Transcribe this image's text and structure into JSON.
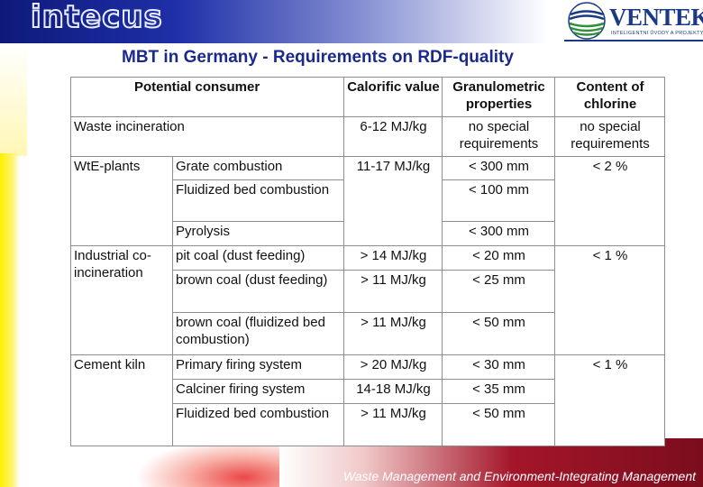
{
  "header": {
    "logo_left": "intecus",
    "logo_right": "VENTEKO",
    "logo_right_tagline": "INTELIGENTNI ÚVODY A PROJEKTY",
    "title": "MBT in Germany - Requirements on RDF-quality"
  },
  "table": {
    "headers": {
      "consumer": "Potential consumer",
      "calorific": "Calorific value",
      "granulometric": "Granulometric properties",
      "chlorine": "Content of chlorine"
    },
    "waste_incineration": {
      "consumer": "Waste incineration",
      "calorific": "6-12 MJ/kg",
      "granulometric": "no special requirements",
      "chlorine": "no special requirements"
    },
    "wte": {
      "group": "WtE-plants",
      "chlorine": "< 2 %",
      "rows": [
        {
          "type": "Grate combustion",
          "calorific": "11-17 MJ/kg",
          "granulometric": "< 300 mm"
        },
        {
          "type": "Fluidized bed combustion",
          "granulometric": "< 100 mm"
        },
        {
          "type": "Pyrolysis",
          "granulometric": "< 300 mm"
        }
      ]
    },
    "industrial": {
      "group": "Industrial co-incineration",
      "chlorine": "< 1 %",
      "rows": [
        {
          "type": "pit coal (dust feeding)",
          "calorific": "> 14 MJ/kg",
          "granulometric": "< 20 mm"
        },
        {
          "type": "brown coal (dust feeding)",
          "calorific": "> 11 MJ/kg",
          "granulometric": "< 25 mm"
        },
        {
          "type": "brown coal (fluidized bed combustion)",
          "calorific": "> 11 MJ/kg",
          "granulometric": "< 50 mm"
        }
      ]
    },
    "cement": {
      "group": "Cement kiln",
      "chlorine": "< 1 %",
      "rows": [
        {
          "type": "Primary firing system",
          "calorific": "> 20 MJ/kg",
          "granulometric": "< 30 mm"
        },
        {
          "type": "Calciner firing system",
          "calorific": "14-18 MJ/kg",
          "granulometric": "< 35 mm"
        },
        {
          "type": "Fluidized bed combustion",
          "calorific": "> 11 MJ/kg",
          "granulometric": "< 50 mm"
        }
      ]
    }
  },
  "footer": {
    "text": "Waste Management and Environment-Integrating Management"
  }
}
